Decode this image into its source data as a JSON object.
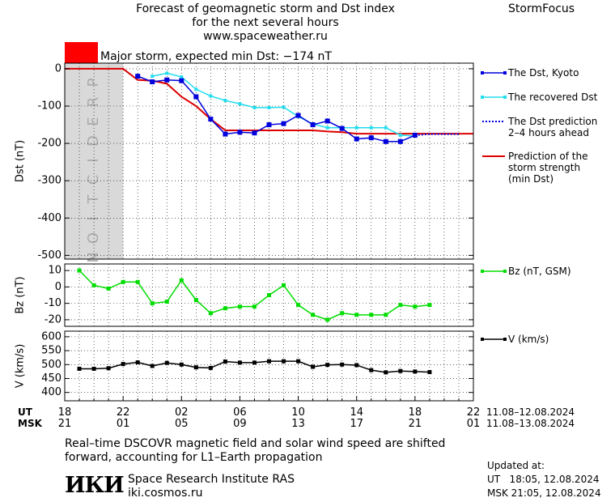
{
  "header": {
    "title_line1": "Forecast of geomagnetic storm and Dst index",
    "title_line2": "for the next several hours",
    "website": "www.spaceweather.ru",
    "brand": "StormFocus",
    "storm_label": "Major storm, expected min Dst: −174 nT",
    "storm_color": "#ff0000"
  },
  "colors": {
    "dst_kyoto": "#0000dd",
    "dst_recovered": "#22ddee",
    "dst_prediction": "#0000dd",
    "storm_strength": "#dd0000",
    "bz": "#00dd00",
    "v": "#000000",
    "prediction_band": "#d9d9d9"
  },
  "chart_data": [
    {
      "type": "line",
      "ylabel": "Dst (nT)",
      "ylim": [
        -510,
        15
      ],
      "yticks": [
        0,
        -100,
        -200,
        -300,
        -400,
        -500
      ],
      "prediction_region": {
        "x_start": 18.0,
        "x_end": 22.0,
        "label": "PREDICTION"
      },
      "series": [
        {
          "name": "The Dst, Kyoto",
          "style": "line+squares",
          "x": [
            23.0,
            24.0,
            25.0,
            26.0,
            27.0,
            28.0,
            29.0,
            30.0,
            31.0,
            32.0,
            33.0,
            34.0,
            35.0,
            36.0,
            37.0,
            38.0,
            39.0,
            40.0,
            41.0,
            42.0
          ],
          "values": [
            -20,
            -35,
            -30,
            -32,
            -75,
            -135,
            -175,
            -170,
            -172,
            -150,
            -147,
            -125,
            -150,
            -140,
            -160,
            -188,
            -185,
            -195,
            -195,
            -178
          ]
        },
        {
          "name": "The recovered Dst",
          "style": "line+dots",
          "x": [
            24.0,
            25.0,
            26.0,
            27.0,
            28.0,
            29.0,
            30.0,
            31.0,
            32.0,
            33.0,
            34.0,
            35.0,
            36.0,
            37.0,
            38.0,
            39.0,
            40.0,
            41.0,
            42.0
          ],
          "values": [
            -20,
            -12,
            -22,
            -55,
            -73,
            -85,
            -94,
            -104,
            -104,
            -103,
            -128,
            -148,
            -158,
            -158,
            -158,
            -158,
            -158,
            -178,
            -180
          ]
        },
        {
          "name": "The Dst prediction 2–4 hours ahead",
          "style": "dotted",
          "x": [
            42.0,
            43.0,
            44.0,
            45.0
          ],
          "values": [
            -178,
            -175,
            -175,
            -175
          ]
        },
        {
          "name": "Prediction of the storm strength (min Dst)",
          "style": "line",
          "x": [
            18.0,
            21.0,
            22.0,
            23.0,
            24.0,
            25.0,
            26.0,
            27.0,
            28.0,
            29.0,
            30.0,
            31.0,
            32.0,
            33.0,
            34.0,
            35.0,
            36.0,
            37.0,
            38.0,
            39.0,
            40.0,
            41.0,
            42.0,
            43.0,
            44.0,
            45.0,
            46.0
          ],
          "values": [
            0,
            0,
            0,
            -30,
            -32,
            -40,
            -75,
            -100,
            -135,
            -165,
            -165,
            -165,
            -165,
            -165,
            -165,
            -165,
            -168,
            -170,
            -174,
            -174,
            -174,
            -174,
            -174,
            -174,
            -174,
            -174,
            -174
          ]
        }
      ]
    },
    {
      "type": "line",
      "ylabel": "Bz (nT)",
      "ylim": [
        -24,
        14
      ],
      "yticks": [
        10,
        0,
        -10,
        -20
      ],
      "series": [
        {
          "name": "Bz (nT, GSM)",
          "x": [
            19.0,
            20.0,
            21.0,
            22.0,
            23.0,
            24.0,
            25.0,
            26.0,
            27.0,
            28.0,
            29.0,
            30.0,
            31.0,
            32.0,
            33.0,
            34.0,
            35.0,
            36.0,
            37.0,
            38.0,
            39.0,
            40.0,
            41.0,
            42.0,
            43.0
          ],
          "values": [
            10,
            1,
            -1,
            3,
            3,
            -10,
            -9,
            4,
            -8,
            -16,
            -13,
            -12,
            -12,
            -5,
            1,
            -11,
            -17,
            -20,
            -16,
            -17,
            -17,
            -17,
            -11,
            -12,
            -11
          ]
        }
      ]
    },
    {
      "type": "line",
      "ylabel": "V (km/s)",
      "ylim": [
        370,
        620
      ],
      "yticks": [
        600,
        550,
        500,
        450,
        400
      ],
      "series": [
        {
          "name": "V (km/s)",
          "x": [
            19.0,
            20.0,
            21.0,
            22.0,
            23.0,
            24.0,
            25.0,
            26.0,
            27.0,
            28.0,
            29.0,
            30.0,
            31.0,
            32.0,
            33.0,
            34.0,
            35.0,
            36.0,
            37.0,
            38.0,
            39.0,
            40.0,
            41.0,
            42.0,
            43.0
          ],
          "values": [
            485,
            485,
            487,
            502,
            508,
            495,
            506,
            500,
            490,
            488,
            511,
            507,
            507,
            512,
            512,
            512,
            492,
            499,
            500,
            498,
            480,
            472,
            477,
            475,
            473
          ]
        }
      ]
    }
  ],
  "x_axis": {
    "range": [
      18,
      46
    ],
    "ut_label": "UT",
    "msk_label": "MSK",
    "ut_ticks": [
      "18",
      "22",
      "02",
      "06",
      "10",
      "14",
      "18",
      "22"
    ],
    "msk_ticks": [
      "21",
      "01",
      "05",
      "09",
      "13",
      "17",
      "21",
      "01"
    ],
    "ut_dates": "11.08–12.08.2024",
    "msk_dates": "11.08–13.08.2024"
  },
  "legend": {
    "kyoto": "The Dst, Kyoto",
    "recovered": "The recovered Dst",
    "prediction_1": "The Dst prediction",
    "prediction_2": "2–4 hours ahead",
    "strength_1": "Prediction of the",
    "strength_2": "storm strength",
    "strength_3": "(min Dst)",
    "bz": "Bz (nT, GSM)",
    "v": "V (km/s)"
  },
  "footer": {
    "note_line1": "Real–time DSCOVR magnetic field and solar wind speed are shifted",
    "note_line2": "forward, accounting for L1–Earth propagation",
    "institute": "Space Research Institute RAS",
    "institute_url": "iki.cosmos.ru",
    "logo_text": "ИКИ",
    "updated_label": "Updated at:",
    "updated_ut": "UT   18:05, 12.08.2024",
    "updated_msk": "MSK 21:05, 12.08.2024"
  }
}
